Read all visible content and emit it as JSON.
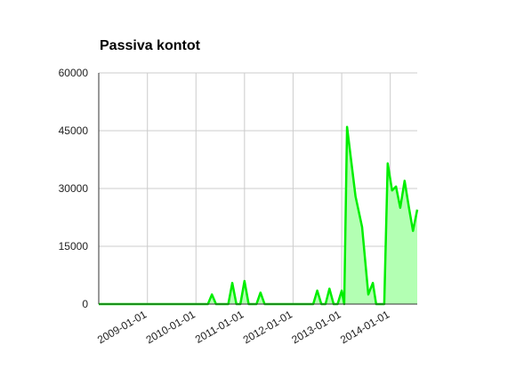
{
  "chart_data": {
    "type": "area",
    "title": "Passiva kontot",
    "x": [
      "2008-01-01",
      "2010-04-01",
      "2010-05-01",
      "2010-06-01",
      "2010-09-01",
      "2010-10-01",
      "2010-11-01",
      "2010-12-01",
      "2011-01-01",
      "2011-02-01",
      "2011-04-01",
      "2011-05-01",
      "2011-06-01",
      "2012-06-01",
      "2012-07-01",
      "2012-08-01",
      "2012-09-01",
      "2012-10-01",
      "2012-11-01",
      "2012-12-01",
      "2013-01-01",
      "2013-01-20",
      "2013-02-10",
      "2013-04-15",
      "2013-06-03",
      "2013-06-30",
      "2013-07-20",
      "2013-08-23",
      "2013-09-17",
      "2013-11-17",
      "2013-12-13",
      "2014-01-15",
      "2014-02-13",
      "2014-03-17",
      "2014-04-19",
      "2014-05-22",
      "2014-06-21",
      "2014-07-23"
    ],
    "values": [
      0,
      0,
      2500,
      0,
      0,
      5500,
      0,
      0,
      6000,
      0,
      0,
      3000,
      0,
      0,
      3500,
      0,
      0,
      4000,
      0,
      0,
      3500,
      0,
      46000,
      28000,
      20000,
      10000,
      2500,
      5500,
      0,
      0,
      36500,
      29500,
      30500,
      25000,
      32000,
      25000,
      19000,
      24500
    ],
    "color": "#00ee00",
    "fill_color": "#b3ffb3",
    "xlim": [
      "2008-01-01",
      "2014-07-23"
    ],
    "xticks": [
      "2009-01-01",
      "2010-01-01",
      "2011-01-01",
      "2012-01-01",
      "2013-01-01",
      "2014-01-01"
    ],
    "ylim": [
      0,
      60000
    ],
    "yticks": [
      0,
      15000,
      30000,
      45000,
      60000
    ],
    "grid": true
  }
}
